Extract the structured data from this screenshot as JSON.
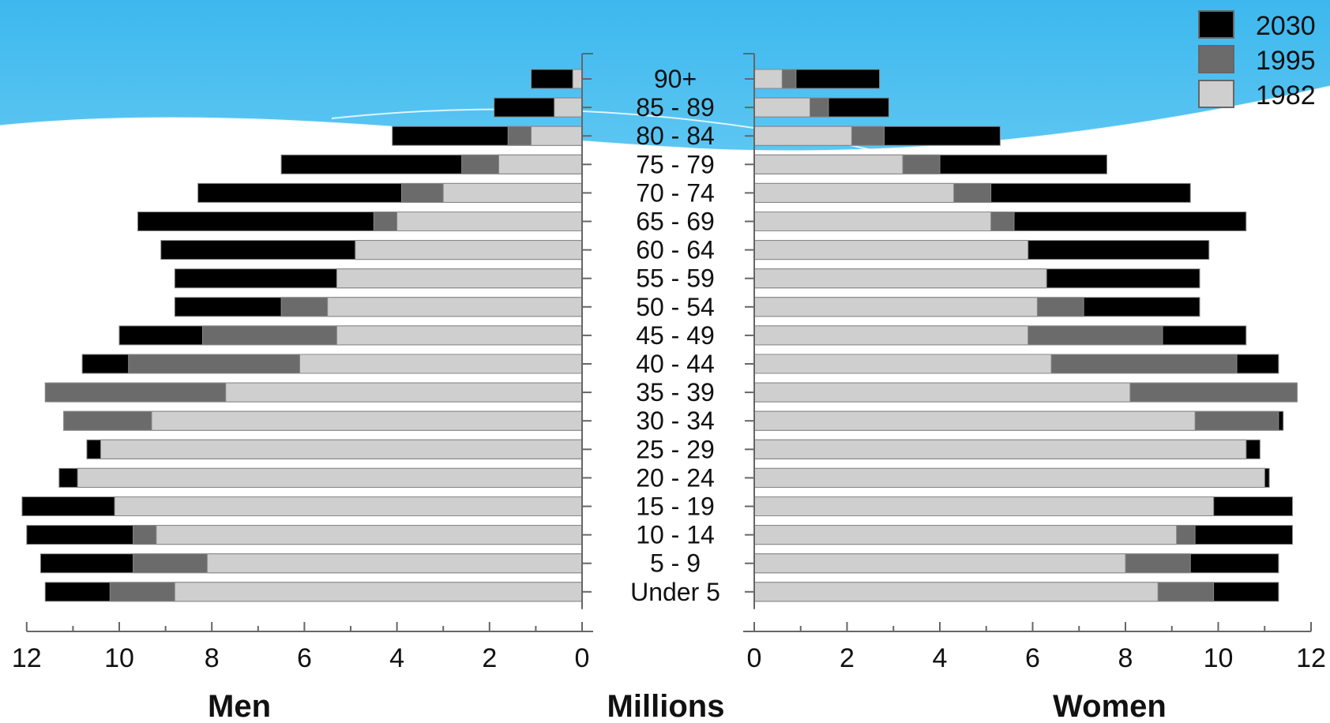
{
  "chart_data": {
    "type": "bar",
    "orientation": "horizontal-pyramid",
    "title": "",
    "xlabel": "Millions",
    "left_label": "Men",
    "right_label": "Women",
    "xlim": [
      0,
      12
    ],
    "ticks": [
      0,
      2,
      4,
      6,
      8,
      10,
      12
    ],
    "categories": [
      "90+",
      "85 - 89",
      "80 - 84",
      "75 - 79",
      "70 - 74",
      "65 - 69",
      "60 - 64",
      "55 - 59",
      "50 - 54",
      "45 - 49",
      "40 - 44",
      "35 - 39",
      "30 - 34",
      "25 - 29",
      "20 - 24",
      "15 - 19",
      "10 - 14",
      "5 - 9",
      "Under 5"
    ],
    "legend": {
      "position": "top-right",
      "entries": [
        {
          "label": "2030",
          "color": "#000000"
        },
        {
          "label": "1995",
          "color": "#6b6b6b"
        },
        {
          "label": "1982",
          "color": "#cfcfcf"
        }
      ]
    },
    "men": {
      "1982": [
        0.2,
        0.6,
        1.1,
        1.8,
        3.0,
        4.0,
        4.9,
        5.3,
        5.5,
        5.3,
        6.1,
        7.7,
        9.3,
        10.4,
        10.9,
        10.1,
        9.2,
        8.1,
        8.8
      ],
      "1995": [
        0.2,
        0.6,
        1.6,
        2.6,
        3.9,
        4.5,
        4.9,
        5.3,
        6.5,
        8.2,
        9.8,
        11.6,
        11.2,
        10.4,
        10.9,
        10.1,
        9.7,
        9.7,
        10.2
      ],
      "2030": [
        1.1,
        1.9,
        4.1,
        6.5,
        8.3,
        9.6,
        9.1,
        8.8,
        8.8,
        10.0,
        10.8,
        11.5,
        11.2,
        10.7,
        11.3,
        12.1,
        12.0,
        11.7,
        11.6
      ]
    },
    "women": {
      "1982": [
        0.6,
        1.2,
        2.1,
        3.2,
        4.3,
        5.1,
        5.9,
        6.3,
        6.1,
        5.9,
        6.4,
        8.1,
        9.5,
        10.6,
        11.0,
        9.9,
        9.1,
        8.0,
        8.7
      ],
      "1995": [
        0.9,
        1.6,
        2.8,
        4.0,
        5.1,
        5.6,
        5.9,
        6.3,
        7.1,
        8.8,
        10.4,
        11.7,
        11.3,
        10.6,
        11.0,
        9.9,
        9.5,
        9.4,
        9.9
      ],
      "2030": [
        2.7,
        2.9,
        5.3,
        7.6,
        9.4,
        10.6,
        9.8,
        9.6,
        9.6,
        10.6,
        11.3,
        11.7,
        11.4,
        10.9,
        11.1,
        11.6,
        11.6,
        11.3,
        11.3
      ]
    }
  }
}
